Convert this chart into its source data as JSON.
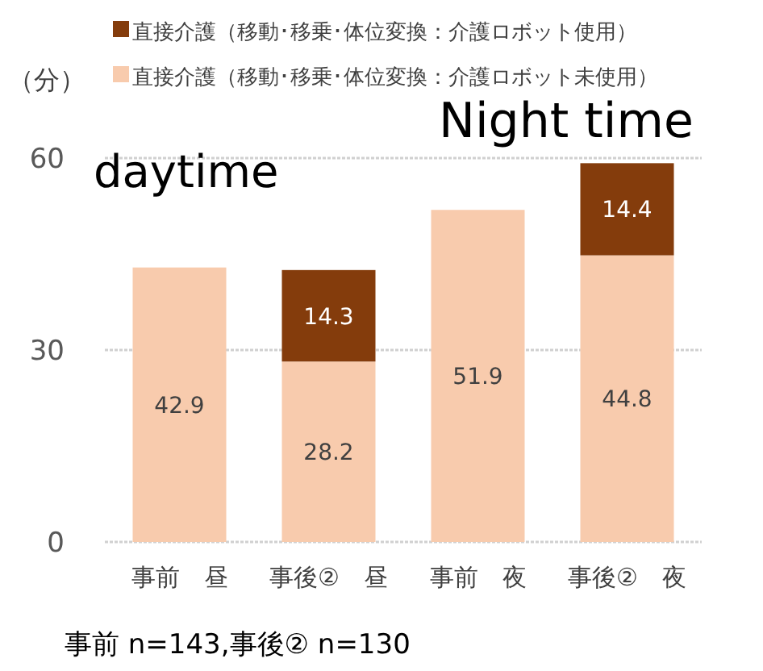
{
  "chart_data": {
    "type": "bar",
    "stacked": true,
    "ylabel": "（分）",
    "categories": [
      "事前　昼",
      "事後②　昼",
      "事前　夜",
      "事後②　夜"
    ],
    "series": [
      {
        "name": "直接介護（移動･移乗･体位変換：介護ロボット未使用）",
        "color": "#f8cbad",
        "values": [
          42.9,
          28.2,
          51.9,
          44.8
        ]
      },
      {
        "name": "直接介護（移動･移乗･体位変換：介護ロボット使用）",
        "color": "#843c0c",
        "values": [
          null,
          14.3,
          null,
          14.4
        ]
      }
    ],
    "ylim": [
      0,
      60
    ],
    "yticks": [
      0,
      30,
      60
    ],
    "grid": "y",
    "legend": "top",
    "data_labels": true,
    "annotations": [
      "daytime",
      "Night time",
      "事前 n=143,事後② n=130"
    ]
  }
}
